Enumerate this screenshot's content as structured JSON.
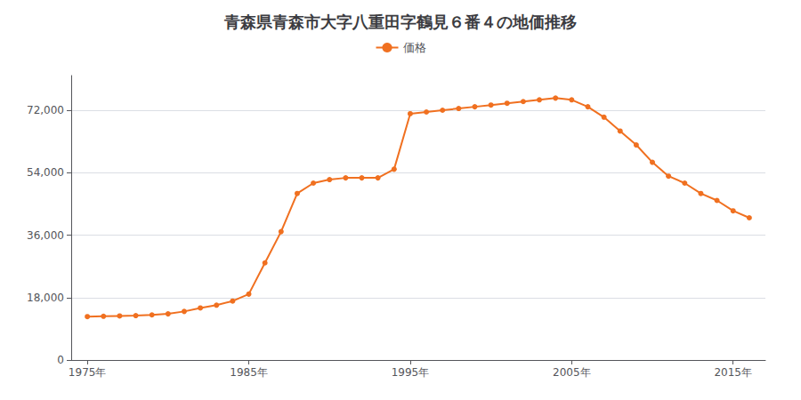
{
  "chart_data": {
    "type": "line",
    "title": "青森県青森市大字八重田字鶴見６番４の地価推移",
    "x": [
      1975,
      1976,
      1977,
      1978,
      1979,
      1980,
      1981,
      1982,
      1983,
      1984,
      1985,
      1986,
      1987,
      1988,
      1989,
      1990,
      1991,
      1992,
      1993,
      1994,
      1995,
      1996,
      1997,
      1998,
      1999,
      2000,
      2001,
      2002,
      2003,
      2004,
      2005,
      2006,
      2007,
      2008,
      2009,
      2010,
      2011,
      2012,
      2013,
      2014,
      2015,
      2016
    ],
    "series": [
      {
        "name": "価格",
        "color": "#f07020",
        "marker": "circle",
        "values": [
          12500,
          12600,
          12700,
          12800,
          13000,
          13300,
          14000,
          15000,
          15800,
          17000,
          19000,
          28000,
          37000,
          48000,
          51000,
          52000,
          52500,
          52500,
          52500,
          55000,
          71000,
          71500,
          72000,
          72500,
          73000,
          73500,
          74000,
          74500,
          75000,
          75500,
          75000,
          73000,
          70000,
          66000,
          62000,
          57000,
          53000,
          51000,
          48000,
          46000,
          43000,
          41000
        ]
      }
    ],
    "xlim": [
      1974,
      2017
    ],
    "xticks": [
      {
        "value": 1975,
        "label": "1975年"
      },
      {
        "value": 1985,
        "label": "1985年"
      },
      {
        "value": 1995,
        "label": "1995年"
      },
      {
        "value": 2005,
        "label": "2005年"
      },
      {
        "value": 2015,
        "label": "2015年"
      }
    ],
    "ylim": [
      0,
      82000
    ],
    "yticks": [
      0,
      {
        "value": 18000,
        "label": "18,000"
      },
      {
        "value": 36000,
        "label": "36,000"
      },
      {
        "value": 54000,
        "label": "54,000"
      },
      {
        "value": 72000,
        "label": "72,000"
      }
    ],
    "grid": true,
    "legend": "upper center"
  }
}
